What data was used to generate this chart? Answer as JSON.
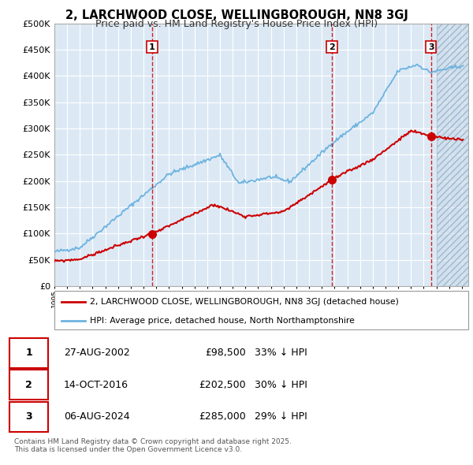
{
  "title": "2, LARCHWOOD CLOSE, WELLINGBOROUGH, NN8 3GJ",
  "subtitle": "Price paid vs. HM Land Registry's House Price Index (HPI)",
  "background_color": "#ffffff",
  "plot_bg_color": "#dce9f5",
  "hpi_color": "#6db3e0",
  "price_color": "#cc0000",
  "ylim": [
    0,
    500000
  ],
  "yticks": [
    0,
    50000,
    100000,
    150000,
    200000,
    250000,
    300000,
    350000,
    400000,
    450000,
    500000
  ],
  "sale_year_nums": [
    2002.667,
    2016.792,
    2024.583
  ],
  "sale_prices": [
    98500,
    202500,
    285000
  ],
  "sale_labels": [
    "1",
    "2",
    "3"
  ],
  "legend_line1": "2, LARCHWOOD CLOSE, WELLINGBOROUGH, NN8 3GJ (detached house)",
  "legend_line2": "HPI: Average price, detached house, North Northamptonshire",
  "table_data": [
    [
      "1",
      "27-AUG-2002",
      "£98,500",
      "33% ↓ HPI"
    ],
    [
      "2",
      "14-OCT-2016",
      "£202,500",
      "30% ↓ HPI"
    ],
    [
      "3",
      "06-AUG-2024",
      "£285,000",
      "29% ↓ HPI"
    ]
  ],
  "footer": "Contains HM Land Registry data © Crown copyright and database right 2025.\nThis data is licensed under the Open Government Licence v3.0.",
  "grid_color": "#ffffff",
  "dashed_line_color": "#cc0000",
  "hatch_start": 2025.0,
  "xmin": 1995,
  "xmax": 2027.5
}
